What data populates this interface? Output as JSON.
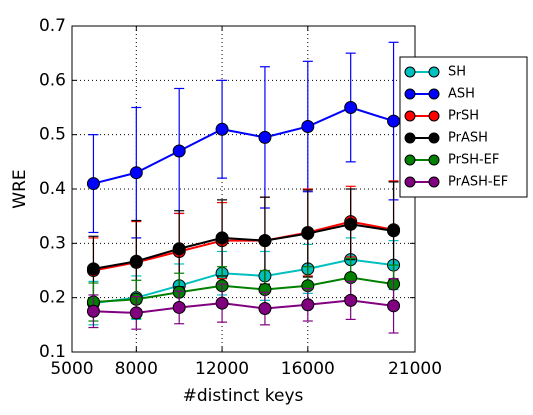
{
  "chart_data": {
    "type": "line",
    "x_label": "#distinct keys",
    "y_label": "WRE",
    "x": [
      6000,
      8000,
      10000,
      12000,
      14000,
      16000,
      18000,
      20000
    ],
    "xlim": [
      5000,
      21000
    ],
    "xticks": [
      5000,
      8000,
      12000,
      16000,
      21000
    ],
    "ylim": [
      0.1,
      0.7
    ],
    "yticks": [
      0.1,
      0.2,
      0.3,
      0.4,
      0.5,
      0.6,
      0.7
    ],
    "grid": true,
    "legend": "upper right",
    "series": [
      {
        "name": "SH",
        "color": "#00bfbf",
        "values": [
          0.19,
          0.2,
          0.222,
          0.245,
          0.24,
          0.253,
          0.27,
          0.26
        ],
        "errors": [
          0.04,
          0.04,
          0.04,
          0.04,
          0.045,
          0.045,
          0.04,
          0.045
        ]
      },
      {
        "name": "ASH",
        "color": "#0000ff",
        "values": [
          0.41,
          0.43,
          0.47,
          0.51,
          0.495,
          0.515,
          0.55,
          0.525
        ],
        "errors": [
          0.09,
          0.12,
          0.115,
          0.09,
          0.13,
          0.12,
          0.1,
          0.145
        ]
      },
      {
        "name": "PrSH",
        "color": "#ff0000",
        "values": [
          0.25,
          0.265,
          0.285,
          0.305,
          0.305,
          0.32,
          0.34,
          0.325
        ],
        "errors": [
          0.06,
          0.075,
          0.07,
          0.07,
          0.08,
          0.08,
          0.065,
          0.09
        ]
      },
      {
        "name": "PrASH",
        "color": "#000000",
        "values": [
          0.253,
          0.267,
          0.29,
          0.31,
          0.305,
          0.318,
          0.335,
          0.323
        ],
        "errors": [
          0.06,
          0.075,
          0.07,
          0.07,
          0.08,
          0.08,
          0.065,
          0.09
        ]
      },
      {
        "name": "PrSH-EF",
        "color": "#008000",
        "values": [
          0.192,
          0.197,
          0.21,
          0.222,
          0.215,
          0.222,
          0.237,
          0.225
        ],
        "errors": [
          0.035,
          0.035,
          0.035,
          0.035,
          0.035,
          0.035,
          0.035,
          0.035
        ]
      },
      {
        "name": "PrASH-EF",
        "color": "#800080",
        "values": [
          0.175,
          0.172,
          0.182,
          0.19,
          0.18,
          0.187,
          0.195,
          0.185
        ],
        "errors": [
          0.03,
          0.03,
          0.03,
          0.035,
          0.03,
          0.03,
          0.035,
          0.05
        ]
      }
    ]
  }
}
